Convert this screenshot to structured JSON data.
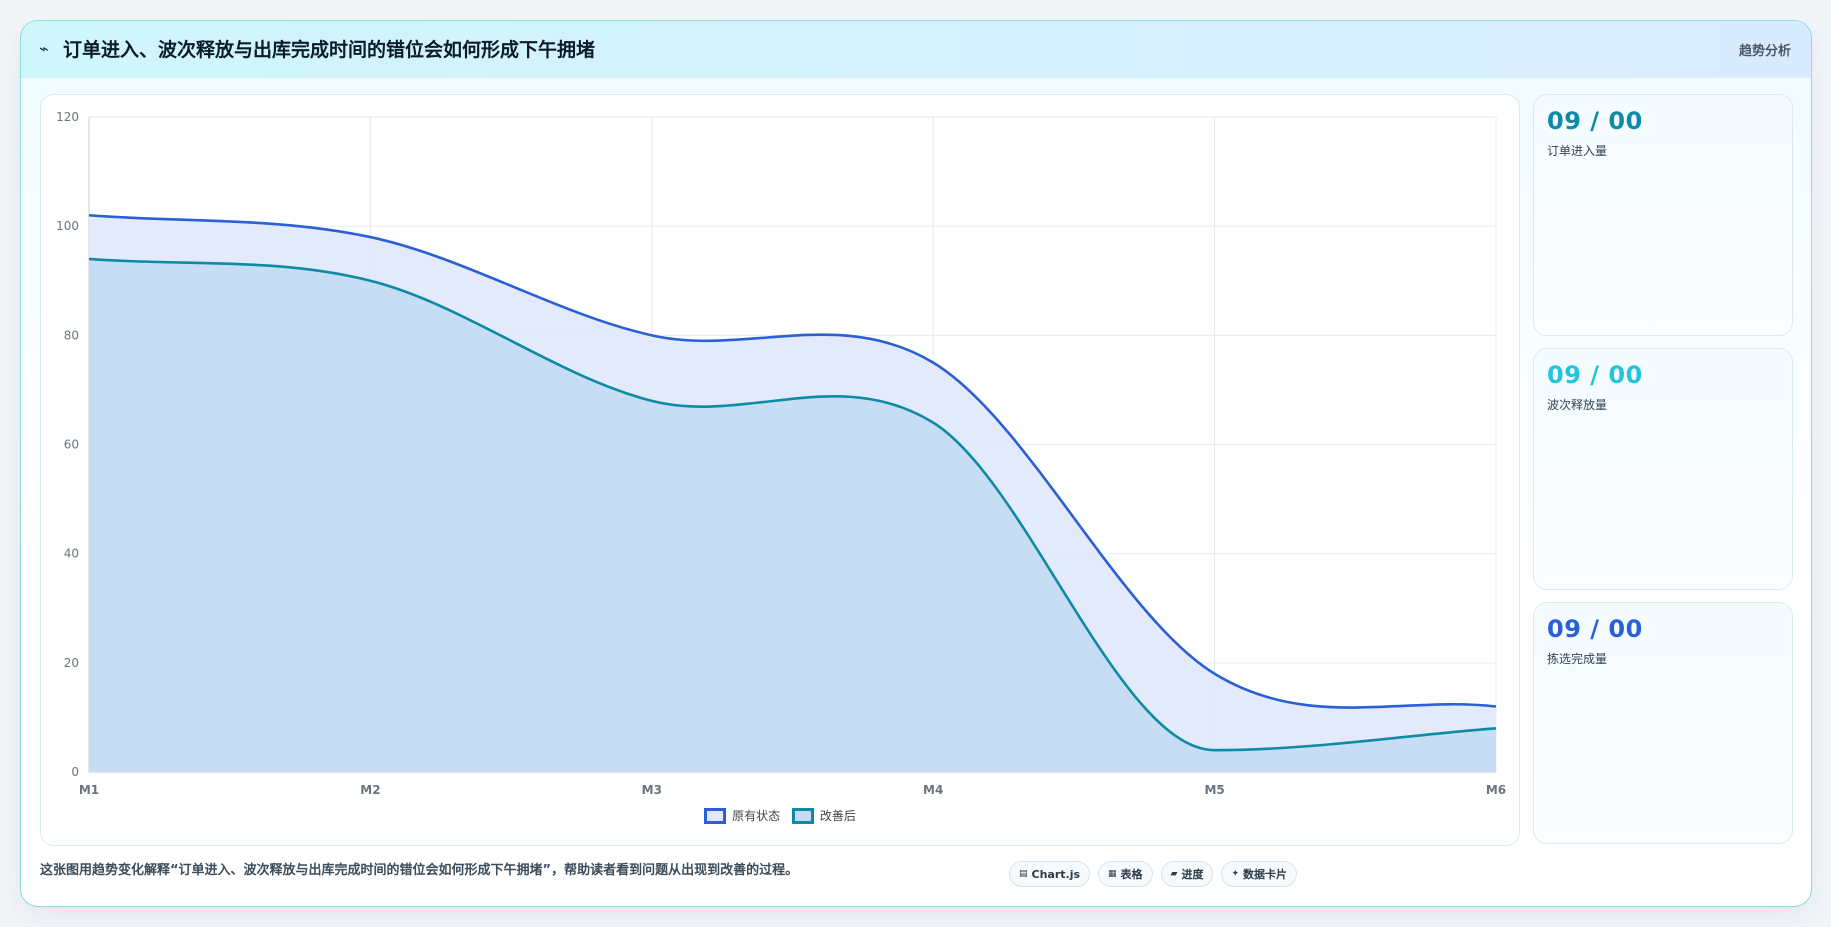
{
  "header": {
    "icon": "chart-line-icon",
    "title": "订单进入、波次释放与出库完成时间的错位会如何形成下午拥堵",
    "view_mode": "趋势分析"
  },
  "chart_data": {
    "type": "area",
    "title": "",
    "xlabel": "",
    "ylabel": "",
    "categories": [
      "M1",
      "M2",
      "M3",
      "M4",
      "M5",
      "M6"
    ],
    "ylim": [
      0,
      120
    ],
    "yticks": [
      0,
      20,
      40,
      60,
      80,
      100,
      120
    ],
    "grid": true,
    "legend_position": "bottom",
    "series": [
      {
        "name": "原有状态",
        "values": [
          102,
          98,
          80,
          75,
          18,
          12
        ],
        "color": "#2a5fd6",
        "fill": "#e0e9fb"
      },
      {
        "name": "改善后",
        "values": [
          94,
          90,
          68,
          64,
          4,
          8
        ],
        "color": "#0d8aa6",
        "fill": "#c4dcf2"
      }
    ]
  },
  "cards": [
    {
      "value": "09 / 00",
      "label": "订单进入量",
      "color": "#0d8aa6"
    },
    {
      "value": "09 / 00",
      "label": "波次释放量",
      "color": "#22c4dd"
    },
    {
      "value": "09 / 00",
      "label": "拣选完成量",
      "color": "#2a5fd6"
    }
  ],
  "footer": {
    "caption": "这张图用趋势变化解释“订单进入、波次释放与出库完成时间的错位会如何形成下午拥堵”，帮助读者看到问题从出现到改善的过程。",
    "chips": [
      {
        "icon": "chart-icon",
        "glyph": "▤",
        "label": "Chart.js"
      },
      {
        "icon": "table-icon",
        "glyph": "▦",
        "label": "表格"
      },
      {
        "icon": "progress-icon",
        "glyph": "▰",
        "label": "进度"
      },
      {
        "icon": "sparkle-icon",
        "glyph": "✦",
        "label": "数据卡片"
      }
    ]
  }
}
